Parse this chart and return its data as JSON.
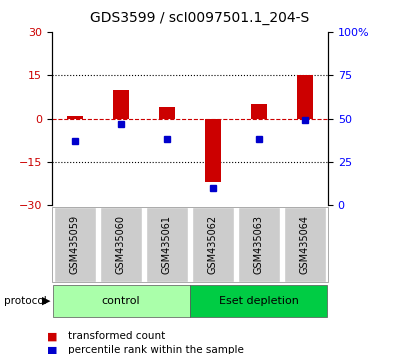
{
  "title": "GDS3599 / scI0097501.1_204-S",
  "samples": [
    "GSM435059",
    "GSM435060",
    "GSM435061",
    "GSM435062",
    "GSM435063",
    "GSM435064"
  ],
  "red_values": [
    1.0,
    10.0,
    4.0,
    -22.0,
    5.0,
    15.0
  ],
  "blue_values": [
    37,
    47,
    38,
    10,
    38,
    49
  ],
  "ylim_left": [
    -30,
    30
  ],
  "ylim_right": [
    0,
    100
  ],
  "yticks_left": [
    -30,
    -15,
    0,
    15,
    30
  ],
  "yticks_right": [
    0,
    25,
    50,
    75,
    100
  ],
  "ytick_labels_right": [
    "0",
    "25",
    "50",
    "75",
    "100%"
  ],
  "dotted_lines": [
    -15,
    15
  ],
  "groups": [
    {
      "label": "control",
      "indices": [
        0,
        1,
        2
      ],
      "color": "#AAFFAA"
    },
    {
      "label": "Eset depletion",
      "indices": [
        3,
        4,
        5
      ],
      "color": "#00CC44"
    }
  ],
  "protocol_label": "protocol",
  "legend_red": "transformed count",
  "legend_blue": "percentile rank within the sample",
  "bar_width": 0.35,
  "marker_size": 5,
  "red_color": "#CC0000",
  "blue_color": "#0000CC",
  "dashed_line_color": "#CC0000",
  "bg_color": "#FFFFFF",
  "tick_label_gray_bg": "#CCCCCC",
  "title_fontsize": 10,
  "axis_fontsize": 8,
  "label_fontsize": 7,
  "legend_fontsize": 7.5
}
